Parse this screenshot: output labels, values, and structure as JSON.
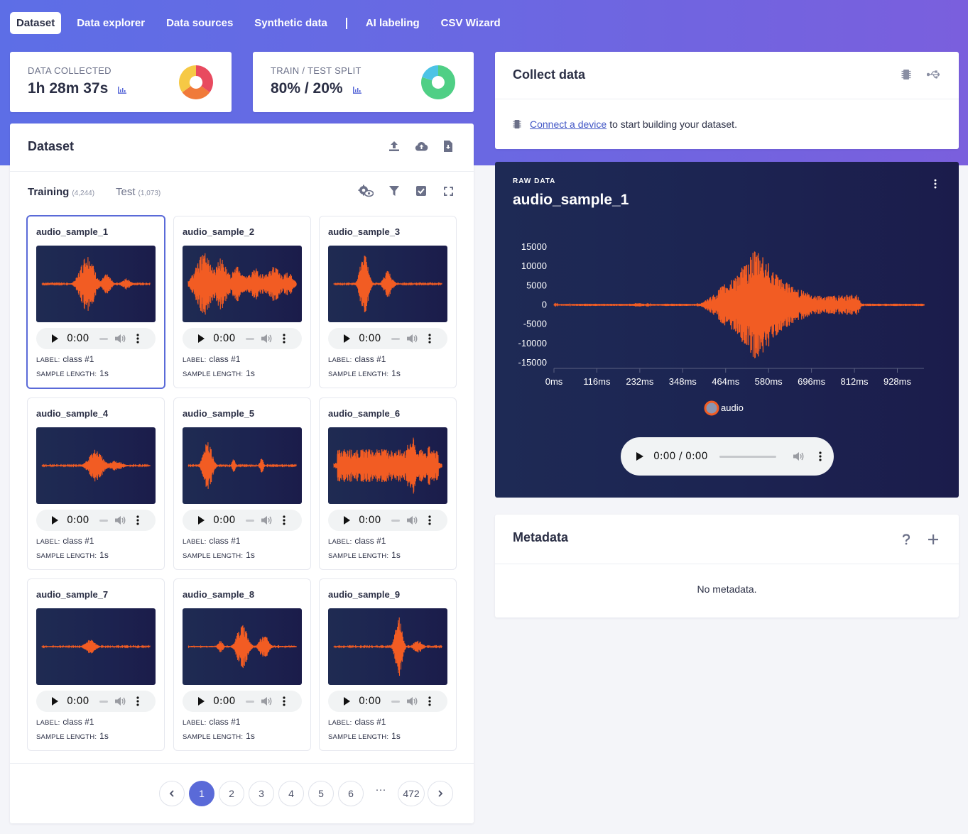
{
  "nav": {
    "items": [
      {
        "label": "Dataset",
        "active": true
      },
      {
        "label": "Data explorer"
      },
      {
        "label": "Data sources"
      },
      {
        "label": "Synthetic data"
      },
      {
        "label": "AI labeling"
      },
      {
        "label": "CSV Wizard"
      }
    ]
  },
  "stats": {
    "collected": {
      "label": "DATA COLLECTED",
      "value": "1h 28m 37s"
    },
    "split": {
      "label": "TRAIN / TEST SPLIT",
      "value": "80% / 20%",
      "train_percent": 80,
      "test_percent": 20
    }
  },
  "dataset": {
    "title": "Dataset",
    "tabs": [
      {
        "label": "Training",
        "count": "(4,244)",
        "active": true
      },
      {
        "label": "Test",
        "count": "(1,073)"
      }
    ],
    "samples": [
      {
        "name": "audio_sample_1",
        "label": "class #1",
        "length": "1s",
        "time": "0:00",
        "selected": true
      },
      {
        "name": "audio_sample_2",
        "label": "class #1",
        "length": "1s",
        "time": "0:00"
      },
      {
        "name": "audio_sample_3",
        "label": "class #1",
        "length": "1s",
        "time": "0:00"
      },
      {
        "name": "audio_sample_4",
        "label": "class #1",
        "length": "1s",
        "time": "0:00"
      },
      {
        "name": "audio_sample_5",
        "label": "class #1",
        "length": "1s",
        "time": "0:00"
      },
      {
        "name": "audio_sample_6",
        "label": "class #1",
        "length": "1s",
        "time": "0:00"
      },
      {
        "name": "audio_sample_7",
        "label": "class #1",
        "length": "1s",
        "time": "0:00"
      },
      {
        "name": "audio_sample_8",
        "label": "class #1",
        "length": "1s",
        "time": "0:00"
      },
      {
        "name": "audio_sample_9",
        "label": "class #1",
        "length": "1s",
        "time": "0:00"
      }
    ],
    "meta_label_key": "LABEL:",
    "meta_length_key": "SAMPLE LENGTH:",
    "pagination": {
      "pages": [
        "1",
        "2",
        "3",
        "4",
        "5",
        "6"
      ],
      "ellipsis": "···",
      "last": "472",
      "current": "1"
    }
  },
  "collect": {
    "title": "Collect data",
    "link_text": "Connect a device",
    "rest_text": "to start building your dataset."
  },
  "raw": {
    "kicker": "RAW DATA",
    "title": "audio_sample_1",
    "player_time": "0:00 / 0:00"
  },
  "chart_data": {
    "type": "line",
    "title": "",
    "xlabel": "",
    "ylabel": "",
    "x_ticks": [
      "0ms",
      "116ms",
      "232ms",
      "348ms",
      "464ms",
      "580ms",
      "696ms",
      "812ms",
      "928ms"
    ],
    "y_ticks": [
      15000,
      10000,
      5000,
      0,
      -5000,
      -10000,
      -15000
    ],
    "ylim": [
      -15000,
      15000
    ],
    "xlim_ms": [
      0,
      1000
    ],
    "grid": false,
    "legend": "bottom-center",
    "series": [
      {
        "name": "audio",
        "color": "#f25c23",
        "envelope_ms": [
          0,
          100,
          200,
          230,
          250,
          300,
          380,
          400,
          430,
          450,
          480,
          500,
          520,
          540,
          560,
          580,
          600,
          620,
          650,
          680,
          700,
          740,
          780,
          820,
          830,
          850,
          900,
          1000
        ],
        "envelope_amplitude": [
          200,
          300,
          250,
          500,
          200,
          300,
          250,
          600,
          2500,
          4500,
          7000,
          9000,
          11000,
          14000,
          13000,
          12000,
          8000,
          6500,
          4500,
          3500,
          2500,
          2500,
          2500,
          2800,
          400,
          300,
          300,
          300
        ]
      }
    ]
  },
  "metadata": {
    "title": "Metadata",
    "empty": "No metadata."
  },
  "colors": {
    "accent": "#5a6ad8",
    "wave": "#f25c23",
    "hero_start": "#5d6ee6",
    "hero_end": "#7a5fdd",
    "donut_green": "#4fcf85",
    "donut_blue": "#4cc3e6",
    "donut_red": "#e84a5f",
    "donut_orange": "#f07a3a",
    "donut_yellow": "#f6c945"
  }
}
